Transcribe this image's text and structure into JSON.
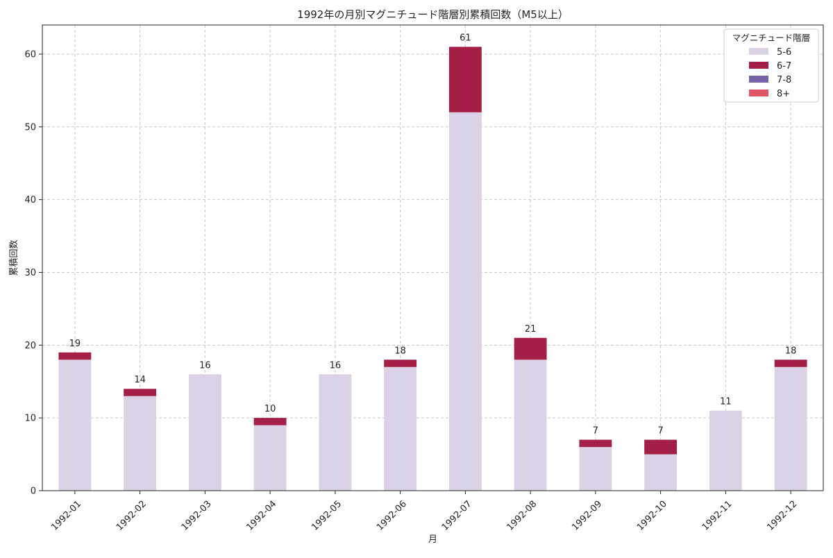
{
  "chart_data": {
    "type": "bar",
    "stacked": true,
    "title": "1992年の月別マグニチュード階層別累積回数（M5以上）",
    "xlabel": "月",
    "ylabel": "累積回数",
    "ylim": [
      0,
      64
    ],
    "yticks": [
      0,
      10,
      20,
      30,
      40,
      50,
      60
    ],
    "grid": true,
    "legend": {
      "title": "マグニチュード階層",
      "placement": "top-right"
    },
    "categories": [
      "1992-01",
      "1992-02",
      "1992-03",
      "1992-04",
      "1992-05",
      "1992-06",
      "1992-07",
      "1992-08",
      "1992-09",
      "1992-10",
      "1992-11",
      "1992-12"
    ],
    "series": [
      {
        "name": "5-6",
        "color": "#dcd2e6",
        "values": [
          18,
          13,
          16,
          9,
          16,
          17,
          52,
          18,
          6,
          5,
          11,
          17
        ]
      },
      {
        "name": "6-7",
        "color": "#a31f45",
        "values": [
          1,
          1,
          0,
          1,
          0,
          1,
          9,
          3,
          1,
          2,
          0,
          1
        ]
      },
      {
        "name": "7-8",
        "color": "#7561a8",
        "values": [
          0,
          0,
          0,
          0,
          0,
          0,
          0,
          0,
          0,
          0,
          0,
          0
        ]
      },
      {
        "name": "8+",
        "color": "#e05566",
        "values": [
          0,
          0,
          0,
          0,
          0,
          0,
          0,
          0,
          0,
          0,
          0,
          0
        ]
      }
    ],
    "totals": [
      19,
      14,
      16,
      10,
      16,
      18,
      61,
      21,
      7,
      7,
      11,
      18
    ]
  }
}
